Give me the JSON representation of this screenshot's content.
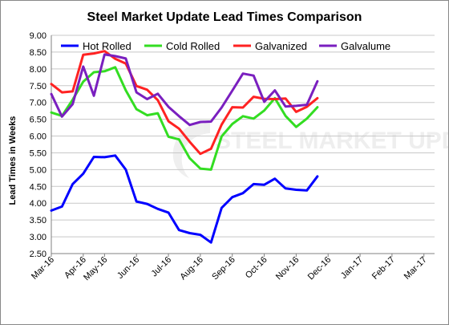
{
  "chart_data": {
    "type": "line",
    "title": "Steel Market Update Lead Times Comparison",
    "ylabel": "Lead Times in Weeks",
    "xlabel": "",
    "ylim": [
      2.5,
      9.0
    ],
    "yticks": [
      "2.50",
      "3.00",
      "3.50",
      "4.00",
      "4.50",
      "5.00",
      "5.50",
      "6.00",
      "6.50",
      "7.00",
      "7.50",
      "8.00",
      "8.50",
      "9.00"
    ],
    "grid": true,
    "legend_position": "top",
    "watermark": "STEEL MARKET UPDATE",
    "x_labels": [
      {
        "label": "Mar-16",
        "index": 0
      },
      {
        "label": "Apr-16",
        "index": 3
      },
      {
        "label": "May-16",
        "index": 5
      },
      {
        "label": "Jun-16",
        "index": 8
      },
      {
        "label": "Jul-16",
        "index": 11
      },
      {
        "label": "Aug-16",
        "index": 14
      },
      {
        "label": "Sep-16",
        "index": 17
      },
      {
        "label": "Oct-16",
        "index": 20
      },
      {
        "label": "Nov-16",
        "index": 23
      },
      {
        "label": "Dec-16",
        "index": 26
      },
      {
        "label": "Jan-17",
        "index": 29
      },
      {
        "label": "Feb-17",
        "index": 32
      },
      {
        "label": "Mar-17",
        "index": 35
      }
    ],
    "series": [
      {
        "name": "Hot Rolled",
        "color": "#0000ff",
        "values": [
          3.78,
          3.9,
          4.57,
          4.88,
          5.38,
          5.37,
          5.42,
          5.0,
          4.05,
          3.98,
          3.83,
          3.72,
          3.2,
          3.11,
          3.06,
          2.83,
          3.86,
          4.18,
          4.3,
          4.57,
          4.55,
          4.73,
          4.44,
          4.4,
          4.38,
          4.8
        ]
      },
      {
        "name": "Cold Rolled",
        "color": "#33dd22",
        "values": [
          6.7,
          6.6,
          7.08,
          7.62,
          7.9,
          7.93,
          8.05,
          7.36,
          6.8,
          6.62,
          6.68,
          5.98,
          5.9,
          5.34,
          5.03,
          5.0,
          5.99,
          6.36,
          6.59,
          6.52,
          6.76,
          7.13,
          6.6,
          6.27,
          6.52,
          6.86
        ]
      },
      {
        "name": "Galvanized",
        "color": "#ff2222",
        "values": [
          7.55,
          7.3,
          7.33,
          8.42,
          8.46,
          8.53,
          8.3,
          8.16,
          7.49,
          7.38,
          7.07,
          6.44,
          6.22,
          5.83,
          5.47,
          5.62,
          6.34,
          6.86,
          6.85,
          7.17,
          7.11,
          7.1,
          7.12,
          6.72,
          6.87,
          7.13
        ]
      },
      {
        "name": "Galvalume",
        "color": "#7a1fbf",
        "values": [
          7.25,
          6.58,
          6.95,
          8.07,
          7.2,
          8.43,
          8.38,
          8.31,
          7.3,
          7.1,
          7.26,
          6.87,
          6.59,
          6.33,
          6.42,
          6.43,
          6.85,
          7.35,
          7.86,
          7.8,
          7.02,
          7.36,
          6.88,
          6.9,
          6.93,
          7.63
        ]
      }
    ]
  }
}
